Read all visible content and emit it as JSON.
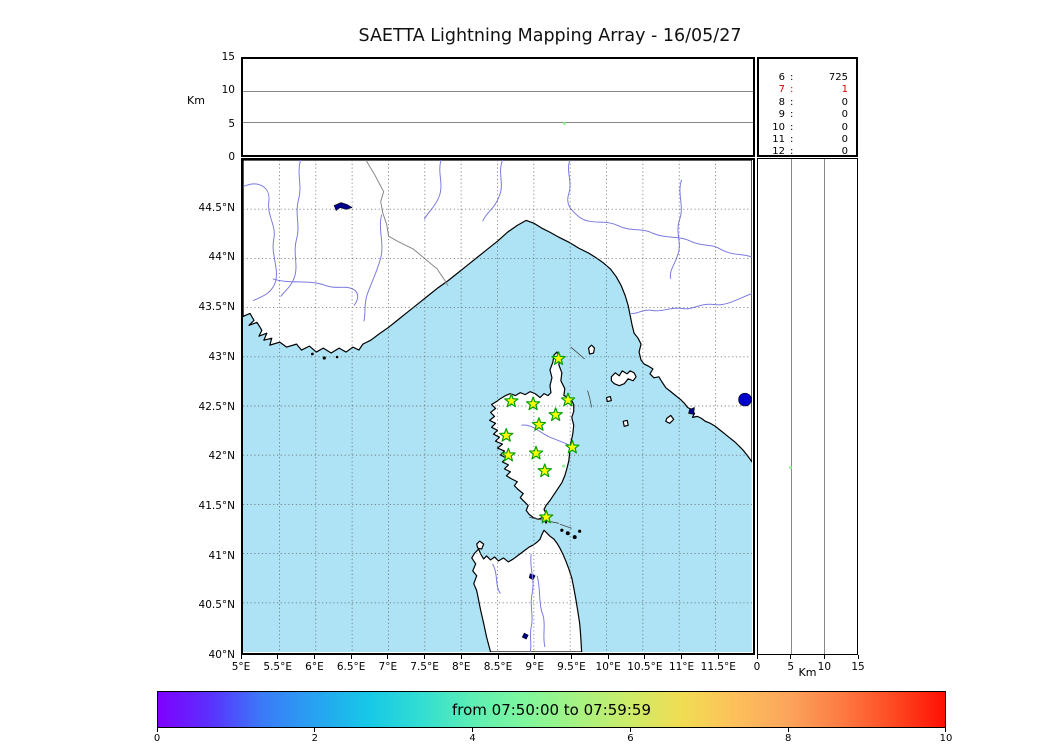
{
  "title": "SAETTA Lightning Mapping Array - 16/05/27",
  "chart_data": {
    "type": "scatter",
    "title": "SAETTA Lightning Mapping Array - 16/05/27",
    "panels": {
      "altitude_vs_longitude": {
        "ylabel": "Km",
        "ylim": [
          0,
          15
        ],
        "yticks": [
          0,
          5,
          10,
          15
        ],
        "grid_yticks": [
          5,
          10
        ]
      },
      "map": {
        "lon_lim": [
          5,
          12
        ],
        "lat_lim": [
          40,
          45
        ],
        "grid_step_deg": 0.5,
        "lon_ticks": [
          {
            "v": 5,
            "label": "5°E"
          },
          {
            "v": 5.5,
            "label": "5.5°E"
          },
          {
            "v": 6,
            "label": "6°E"
          },
          {
            "v": 6.5,
            "label": "6.5°E"
          },
          {
            "v": 7,
            "label": "7°E"
          },
          {
            "v": 7.5,
            "label": "7.5°E"
          },
          {
            "v": 8,
            "label": "8°E"
          },
          {
            "v": 8.5,
            "label": "8.5°E"
          },
          {
            "v": 9,
            "label": "9°E"
          },
          {
            "v": 9.5,
            "label": "9.5°E"
          },
          {
            "v": 10,
            "label": "10°E"
          },
          {
            "v": 10.5,
            "label": "10.5°E"
          },
          {
            "v": 11,
            "label": "11°E"
          },
          {
            "v": 11.5,
            "label": "11.5°E"
          }
        ],
        "lat_ticks": [
          {
            "v": 44.5,
            "label": "44.5°N"
          },
          {
            "v": 44,
            "label": "44°N"
          },
          {
            "v": 43.5,
            "label": "43.5°N"
          },
          {
            "v": 43,
            "label": "43°N"
          },
          {
            "v": 42.5,
            "label": "42.5°N"
          },
          {
            "v": 42,
            "label": "42°N"
          },
          {
            "v": 41.5,
            "label": "41.5°N"
          },
          {
            "v": 41,
            "label": "41°N"
          },
          {
            "v": 40.5,
            "label": "40.5°N"
          },
          {
            "v": 40,
            "label": "40°N"
          }
        ]
      },
      "altitude_vs_latitude": {
        "xlabel": "Km",
        "xlim": [
          0,
          15
        ],
        "xticks": [
          0,
          5,
          10,
          15
        ],
        "grid_xticks": [
          5,
          10
        ]
      },
      "station_source_counts": [
        {
          "station": "6",
          "count": "725",
          "highlight": false
        },
        {
          "station": "7",
          "count": "1",
          "highlight": true
        },
        {
          "station": "8",
          "count": "0",
          "highlight": false
        },
        {
          "station": "9",
          "count": "0",
          "highlight": false
        },
        {
          "station": "10",
          "count": "0",
          "highlight": false
        },
        {
          "station": "11",
          "count": "0",
          "highlight": false
        },
        {
          "station": "12",
          "count": "0",
          "highlight": false
        }
      ]
    },
    "stations": [
      {
        "lon": 9.34,
        "lat": 42.98
      },
      {
        "lon": 8.69,
        "lat": 42.55
      },
      {
        "lon": 8.99,
        "lat": 42.52
      },
      {
        "lon": 9.47,
        "lat": 42.56
      },
      {
        "lon": 9.3,
        "lat": 42.41
      },
      {
        "lon": 9.07,
        "lat": 42.31
      },
      {
        "lon": 8.62,
        "lat": 42.2
      },
      {
        "lon": 9.53,
        "lat": 42.08
      },
      {
        "lon": 8.65,
        "lat": 42.0
      },
      {
        "lon": 9.03,
        "lat": 42.02
      },
      {
        "lon": 9.15,
        "lat": 41.84
      },
      {
        "lon": 9.17,
        "lat": 41.37
      }
    ],
    "lightning_sources": [
      {
        "lon": 9.41,
        "lat": 41.89,
        "alt_km": 5.0
      }
    ],
    "colorbar": {
      "label": "from 07:50:00 to 07:59:59",
      "min": 0,
      "max": 10,
      "ticks": [
        0,
        2,
        4,
        6,
        8,
        10
      ],
      "gradient": [
        "#7f00ff",
        "#5a31fd",
        "#3a7bf7",
        "#27a3f1",
        "#16c8e7",
        "#32ddd2",
        "#5deeb4",
        "#80f79c",
        "#a6f282",
        "#cdeb68",
        "#f2dc52",
        "#fdc05b",
        "#fca55c",
        "#fd7c44",
        "#fe4a22",
        "#ff0f03"
      ]
    },
    "legend_position": "none"
  },
  "colors": {
    "sea": "#aee3f5",
    "land": "#ffffff",
    "coast": "#000000",
    "river": "#7b7be0",
    "country_border": "#888888",
    "grid": "#555555",
    "star_fill": "#ffff00",
    "star_edge": "#00a000",
    "source": "#8df58c",
    "lake": "#00008b",
    "lake_dot": "#0000cc",
    "highlight": "#e00000"
  }
}
